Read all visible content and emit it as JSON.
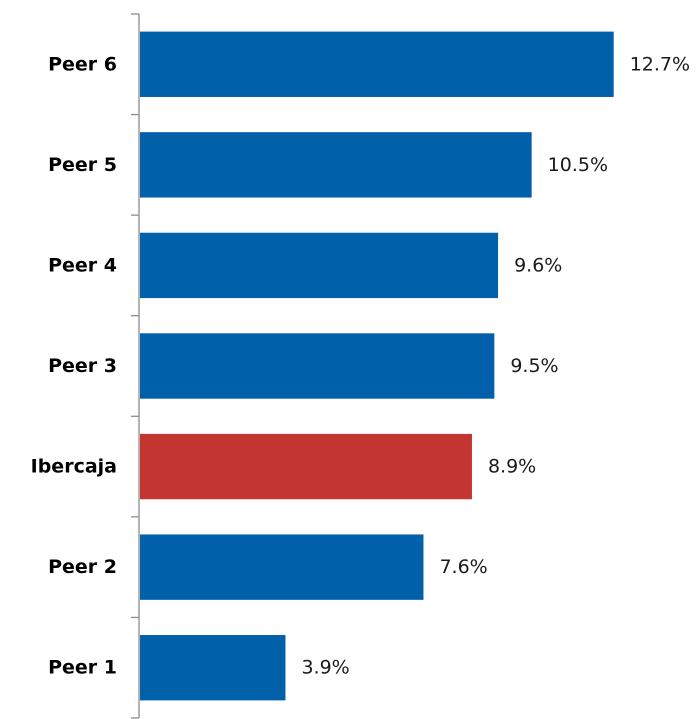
{
  "chart_data": {
    "type": "bar",
    "orientation": "horizontal",
    "categories": [
      "Peer 6",
      "Peer 5",
      "Peer 4",
      "Peer 3",
      "Ibercaja",
      "Peer 2",
      "Peer 1"
    ],
    "values": [
      12.7,
      10.5,
      9.6,
      9.5,
      8.9,
      7.6,
      3.9
    ],
    "value_labels": [
      "12.7%",
      "10.5%",
      "9.6%",
      "9.5%",
      "8.9%",
      "7.6%",
      "3.9%"
    ],
    "highlight": "Ibercaja",
    "xlim": [
      0,
      13.7
    ],
    "grid": false,
    "legend": "none",
    "colors": {
      "default": "#0060a9",
      "highlight": "#c33530"
    },
    "title": "",
    "xlabel": "",
    "ylabel": ""
  }
}
